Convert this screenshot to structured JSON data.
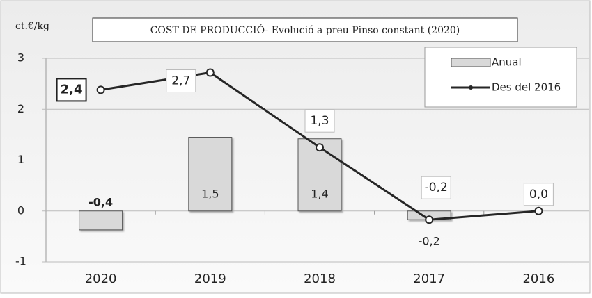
{
  "chart_data": {
    "type": "bar_line",
    "title": "COST DE PRODUCCIÓ-  Evolució a preu Pinso constant (2020)",
    "y_label": "ct.€/kg",
    "categories": [
      "2020",
      "2019",
      "2018",
      "2017",
      "2016"
    ],
    "series": [
      {
        "name": "Anual",
        "type": "bar",
        "color": "#d9d9d9",
        "values": [
          -0.37,
          1.45,
          1.42,
          -0.17,
          null
        ],
        "value_labels": [
          "-0,4",
          "1,5",
          "1,4",
          "-0,2",
          null
        ]
      },
      {
        "name": "Des del 2016",
        "type": "line",
        "color": "#262626",
        "values": [
          2.38,
          2.72,
          1.25,
          -0.17,
          0.0
        ],
        "value_labels": [
          "2,4",
          "2,7",
          "1,3",
          "-0,2",
          "0,0"
        ]
      }
    ],
    "ylim": [
      -1,
      3
    ],
    "yticks": [
      -1,
      0,
      1,
      2,
      3
    ],
    "grid": true,
    "legend": "upper right"
  }
}
